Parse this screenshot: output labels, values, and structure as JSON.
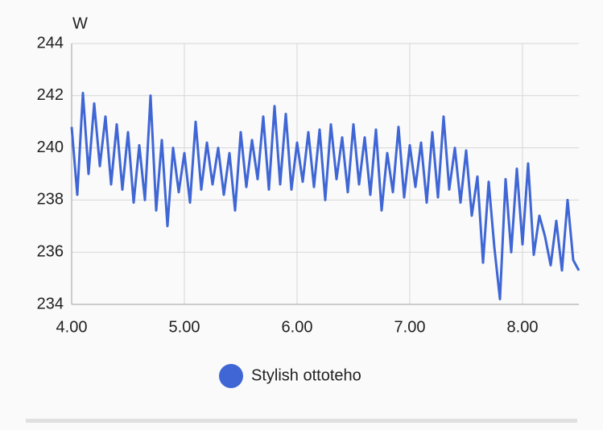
{
  "chart_data": {
    "type": "line",
    "y_unit": "W",
    "x": [
      4.0,
      4.05,
      4.1,
      4.15,
      4.2,
      4.25,
      4.3,
      4.35,
      4.4,
      4.45,
      4.5,
      4.55,
      4.6,
      4.65,
      4.7,
      4.75,
      4.8,
      4.85,
      4.9,
      4.95,
      5.0,
      5.05,
      5.1,
      5.15,
      5.2,
      5.25,
      5.3,
      5.35,
      5.4,
      5.45,
      5.5,
      5.55,
      5.6,
      5.65,
      5.7,
      5.75,
      5.8,
      5.85,
      5.9,
      5.95,
      6.0,
      6.05,
      6.1,
      6.15,
      6.2,
      6.25,
      6.3,
      6.35,
      6.4,
      6.45,
      6.5,
      6.55,
      6.6,
      6.65,
      6.7,
      6.75,
      6.8,
      6.85,
      6.9,
      6.95,
      7.0,
      7.05,
      7.1,
      7.15,
      7.2,
      7.25,
      7.3,
      7.35,
      7.4,
      7.45,
      7.5,
      7.55,
      7.6,
      7.65,
      7.7,
      7.75,
      7.8,
      7.85,
      7.9,
      7.95,
      8.0,
      8.05,
      8.1,
      8.15,
      8.2,
      8.25,
      8.3,
      8.35,
      8.4,
      8.45,
      8.5
    ],
    "series": [
      {
        "name": "Stylish ottoteho",
        "color": "#3f66d4",
        "values": [
          240.8,
          238.2,
          242.1,
          239.0,
          241.7,
          239.3,
          241.2,
          238.6,
          240.9,
          238.4,
          240.6,
          237.9,
          240.1,
          238.0,
          242.0,
          237.6,
          240.3,
          237.0,
          240.0,
          238.3,
          239.8,
          237.9,
          241.0,
          238.4,
          240.2,
          238.6,
          240.0,
          238.2,
          239.8,
          237.6,
          240.6,
          238.5,
          240.3,
          238.8,
          241.2,
          238.4,
          241.6,
          238.6,
          241.3,
          238.4,
          240.2,
          238.7,
          240.6,
          238.5,
          240.7,
          238.0,
          240.9,
          238.8,
          240.4,
          238.3,
          240.9,
          238.6,
          240.4,
          238.2,
          240.7,
          237.6,
          239.8,
          238.3,
          240.8,
          238.1,
          240.1,
          238.5,
          240.2,
          237.9,
          240.6,
          238.1,
          241.2,
          238.4,
          240.0,
          237.9,
          239.9,
          237.4,
          238.9,
          235.6,
          238.7,
          236.2,
          234.2,
          238.8,
          236.0,
          239.2,
          236.3,
          239.4,
          235.9,
          237.4,
          236.6,
          235.5,
          237.2,
          235.3,
          238.0,
          235.7,
          235.3
        ]
      }
    ],
    "xlim": [
      4,
      8.5
    ],
    "ylim": [
      234,
      244
    ],
    "xticks": [
      {
        "value": 4,
        "label": "4.00"
      },
      {
        "value": 5,
        "label": "5.00"
      },
      {
        "value": 6,
        "label": "6.00"
      },
      {
        "value": 7,
        "label": "7.00"
      },
      {
        "value": 8,
        "label": "8.00"
      }
    ],
    "yticks": [
      234,
      236,
      238,
      240,
      242,
      244
    ],
    "grid": true
  }
}
